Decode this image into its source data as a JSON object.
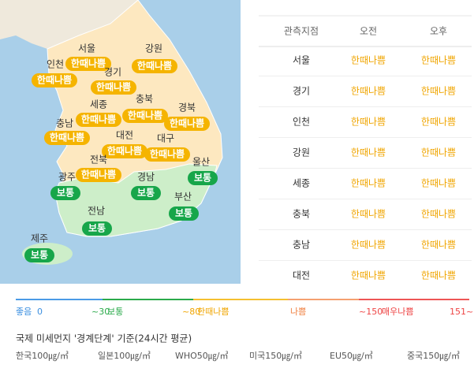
{
  "map": {
    "regions": [
      {
        "name": "서울",
        "status": "한때나쁨"
      },
      {
        "name": "강원",
        "status": "한때나쁨"
      },
      {
        "name": "인천",
        "status": "한때나쁨"
      },
      {
        "name": "경기",
        "status": "한때나쁨"
      },
      {
        "name": "세종",
        "status": "한때나쁨"
      },
      {
        "name": "충북",
        "status": "한때나쁨"
      },
      {
        "name": "경북",
        "status": "한때나쁨"
      },
      {
        "name": "충남",
        "status": "한때나쁨"
      },
      {
        "name": "대전",
        "status": "한때나쁨"
      },
      {
        "name": "대구",
        "status": "한때나쁨"
      },
      {
        "name": "전북",
        "status": "한때나쁨"
      },
      {
        "name": "울산",
        "status": "보통"
      },
      {
        "name": "광주",
        "status": "보통"
      },
      {
        "name": "경남",
        "status": "보통"
      },
      {
        "name": "부산",
        "status": "보통"
      },
      {
        "name": "전남",
        "status": "보통"
      },
      {
        "name": "제주",
        "status": "보통"
      }
    ]
  },
  "table": {
    "headers": [
      "관측지점",
      "오전",
      "오후"
    ],
    "rows": [
      [
        "서울",
        "한때나쁨",
        "한때나쁨"
      ],
      [
        "경기",
        "한때나쁨",
        "한때나쁨"
      ],
      [
        "인천",
        "한때나쁨",
        "한때나쁨"
      ],
      [
        "강원",
        "한때나쁨",
        "한때나쁨"
      ],
      [
        "세종",
        "한때나쁨",
        "한때나쁨"
      ],
      [
        "충북",
        "한때나쁨",
        "한때나쁨"
      ],
      [
        "충남",
        "한때나쁨",
        "한때나쁨"
      ],
      [
        "대전",
        "한때나쁨",
        "한때나쁨"
      ]
    ]
  },
  "legend": {
    "labels": [
      "좋음",
      "0",
      "~30",
      "보통",
      "~80",
      "한때나쁨",
      "나쁨",
      "~150",
      "매우나쁨",
      "151~"
    ]
  },
  "footer": {
    "title": "국제 미세먼지 '경계단계' 기준(24시간 평균)",
    "standards": [
      "한국100㎍/㎥",
      "일본100㎍/㎥",
      "WHO50㎍/㎥",
      "미국150㎍/㎥",
      "EU50㎍/㎥",
      "중국150㎍/㎥"
    ]
  }
}
